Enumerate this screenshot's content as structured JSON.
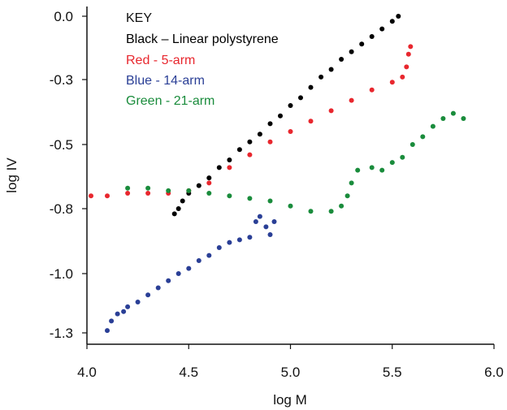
{
  "chart_data": {
    "type": "scatter",
    "xlabel": "log M",
    "ylabel": "log IV",
    "xlim": [
      4.0,
      6.0
    ],
    "ylim": [
      -1.35,
      0.0
    ],
    "x_ticks": [
      "4.0",
      "4.5",
      "5.0",
      "5.5",
      "6.0"
    ],
    "x_tick_values": [
      4.0,
      4.5,
      5.0,
      5.5,
      6.0
    ],
    "y_ticks": [
      "0.0",
      "-0.3",
      "-0.5",
      "-0.8",
      "-1.0",
      "-1.3"
    ],
    "y_tick_values": [
      0.0,
      -0.25,
      -0.5,
      -0.75,
      -1.0,
      -1.25
    ],
    "grid": false,
    "legend_position": "top-left",
    "legend_title": "KEY",
    "series": [
      {
        "name": "Black – Linear polystyrene",
        "legend_label": "Black – Linear polystyrene",
        "color": "#000000",
        "points": [
          [
            4.43,
            -0.77
          ],
          [
            4.45,
            -0.75
          ],
          [
            4.47,
            -0.72
          ],
          [
            4.5,
            -0.69
          ],
          [
            4.55,
            -0.66
          ],
          [
            4.6,
            -0.63
          ],
          [
            4.65,
            -0.59
          ],
          [
            4.7,
            -0.56
          ],
          [
            4.75,
            -0.52
          ],
          [
            4.8,
            -0.49
          ],
          [
            4.85,
            -0.46
          ],
          [
            4.9,
            -0.42
          ],
          [
            4.95,
            -0.39
          ],
          [
            5.0,
            -0.35
          ],
          [
            5.05,
            -0.32
          ],
          [
            5.1,
            -0.28
          ],
          [
            5.15,
            -0.24
          ],
          [
            5.2,
            -0.21
          ],
          [
            5.25,
            -0.17
          ],
          [
            5.3,
            -0.14
          ],
          [
            5.35,
            -0.11
          ],
          [
            5.4,
            -0.08
          ],
          [
            5.45,
            -0.05
          ],
          [
            5.5,
            -0.02
          ],
          [
            5.53,
            0.0
          ]
        ]
      },
      {
        "name": "Red - 5-arm",
        "legend_label": "Red - 5-arm",
        "color": "#e8272e",
        "points": [
          [
            4.02,
            -0.7
          ],
          [
            4.1,
            -0.7
          ],
          [
            4.2,
            -0.69
          ],
          [
            4.3,
            -0.69
          ],
          [
            4.4,
            -0.69
          ],
          [
            4.5,
            -0.68
          ],
          [
            4.6,
            -0.65
          ],
          [
            4.7,
            -0.59
          ],
          [
            4.8,
            -0.54
          ],
          [
            4.9,
            -0.49
          ],
          [
            5.0,
            -0.45
          ],
          [
            5.1,
            -0.41
          ],
          [
            5.2,
            -0.37
          ],
          [
            5.3,
            -0.33
          ],
          [
            5.4,
            -0.29
          ],
          [
            5.5,
            -0.26
          ],
          [
            5.55,
            -0.24
          ],
          [
            5.57,
            -0.2
          ],
          [
            5.58,
            -0.15
          ],
          [
            5.59,
            -0.12
          ]
        ]
      },
      {
        "name": "Blue - 14-arm",
        "legend_label": "Blue - 14-arm",
        "color": "#2a3f96",
        "points": [
          [
            4.1,
            -1.24
          ],
          [
            4.12,
            -1.2
          ],
          [
            4.15,
            -1.17
          ],
          [
            4.18,
            -1.16
          ],
          [
            4.2,
            -1.14
          ],
          [
            4.25,
            -1.12
          ],
          [
            4.3,
            -1.09
          ],
          [
            4.35,
            -1.06
          ],
          [
            4.4,
            -1.03
          ],
          [
            4.45,
            -1.0
          ],
          [
            4.5,
            -0.98
          ],
          [
            4.55,
            -0.95
          ],
          [
            4.6,
            -0.93
          ],
          [
            4.65,
            -0.9
          ],
          [
            4.7,
            -0.88
          ],
          [
            4.75,
            -0.87
          ],
          [
            4.8,
            -0.86
          ],
          [
            4.83,
            -0.8
          ],
          [
            4.85,
            -0.78
          ],
          [
            4.88,
            -0.82
          ],
          [
            4.9,
            -0.85
          ],
          [
            4.92,
            -0.8
          ]
        ]
      },
      {
        "name": "Green - 21-arm",
        "legend_label": "Green - 21-arm",
        "color": "#1a8c3c",
        "points": [
          [
            4.2,
            -0.67
          ],
          [
            4.3,
            -0.67
          ],
          [
            4.4,
            -0.68
          ],
          [
            4.5,
            -0.68
          ],
          [
            4.6,
            -0.69
          ],
          [
            4.7,
            -0.7
          ],
          [
            4.8,
            -0.71
          ],
          [
            4.9,
            -0.72
          ],
          [
            5.0,
            -0.74
          ],
          [
            5.1,
            -0.76
          ],
          [
            5.2,
            -0.76
          ],
          [
            5.25,
            -0.74
          ],
          [
            5.28,
            -0.7
          ],
          [
            5.3,
            -0.65
          ],
          [
            5.33,
            -0.6
          ],
          [
            5.4,
            -0.59
          ],
          [
            5.45,
            -0.6
          ],
          [
            5.5,
            -0.57
          ],
          [
            5.55,
            -0.55
          ],
          [
            5.6,
            -0.5
          ],
          [
            5.65,
            -0.47
          ],
          [
            5.7,
            -0.43
          ],
          [
            5.75,
            -0.4
          ],
          [
            5.8,
            -0.38
          ],
          [
            5.85,
            -0.4
          ]
        ]
      }
    ]
  }
}
